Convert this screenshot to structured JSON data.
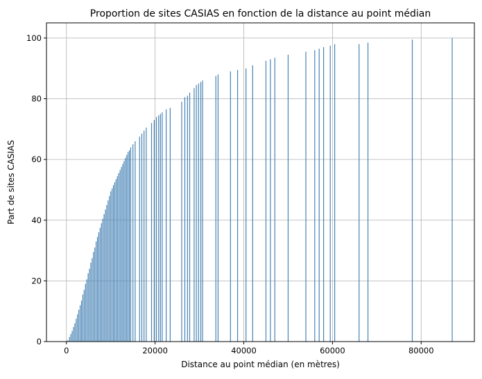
{
  "chart_data": {
    "type": "bar",
    "title": "Proportion de sites CASIAS en fonction de la distance au point médian",
    "xlabel": "Distance au point médian (en mètres)",
    "ylabel": "Part de sites CASIAS",
    "xlim": [
      -4500,
      92000
    ],
    "ylim": [
      0,
      105
    ],
    "xticks": [
      0,
      20000,
      40000,
      60000,
      80000
    ],
    "yticks": [
      0,
      20,
      40,
      60,
      80,
      100
    ],
    "grid": true,
    "bar_color": "#4682b4",
    "x": [
      300,
      700,
      1000,
      1300,
      1600,
      1900,
      2200,
      2500,
      2800,
      3100,
      3400,
      3700,
      4000,
      4300,
      4600,
      4900,
      5200,
      5500,
      5800,
      6100,
      6400,
      6700,
      7000,
      7300,
      7600,
      7900,
      8200,
      8500,
      8800,
      9100,
      9400,
      9700,
      10000,
      10300,
      10600,
      10900,
      11200,
      11500,
      11800,
      12100,
      12400,
      12700,
      13000,
      13300,
      13600,
      13900,
      14200,
      14500,
      15000,
      15500,
      16500,
      17000,
      17500,
      18000,
      19200,
      19800,
      20300,
      20800,
      21200,
      21600,
      22500,
      23400,
      26000,
      26700,
      27300,
      27800,
      28800,
      29300,
      29800,
      30300,
      30700,
      33700,
      34200,
      37000,
      38600,
      40500,
      42000,
      45000,
      46000,
      47000,
      50000,
      54000,
      56000,
      57000,
      58000,
      59500,
      60500,
      66000,
      68000,
      78000,
      87000
    ],
    "values": [
      0.5,
      1.5,
      2.5,
      3.5,
      4.8,
      6.0,
      7.5,
      9.0,
      10.5,
      12.0,
      13.5,
      15.5,
      17.0,
      19.0,
      20.5,
      22.5,
      24.0,
      26.0,
      27.5,
      29.5,
      31.0,
      33.0,
      34.5,
      36.0,
      37.5,
      39.0,
      40.5,
      42.0,
      43.5,
      45.0,
      46.5,
      48.0,
      49.5,
      50.5,
      51.5,
      52.5,
      53.5,
      54.5,
      55.5,
      56.5,
      57.5,
      58.5,
      59.5,
      60.5,
      61.5,
      62.5,
      63.0,
      64.0,
      65.0,
      66.0,
      67.5,
      68.5,
      69.5,
      70.5,
      72.0,
      73.0,
      74.0,
      74.5,
      75.0,
      75.5,
      76.5,
      77.0,
      79.0,
      80.5,
      81.0,
      82.0,
      83.5,
      84.5,
      85.0,
      85.5,
      86.0,
      87.5,
      88.0,
      89.0,
      89.5,
      90.0,
      91.0,
      92.5,
      93.0,
      93.5,
      94.5,
      95.5,
      96.0,
      96.5,
      97.0,
      97.5,
      98.0,
      98.0,
      98.5,
      99.5,
      100.0
    ]
  }
}
